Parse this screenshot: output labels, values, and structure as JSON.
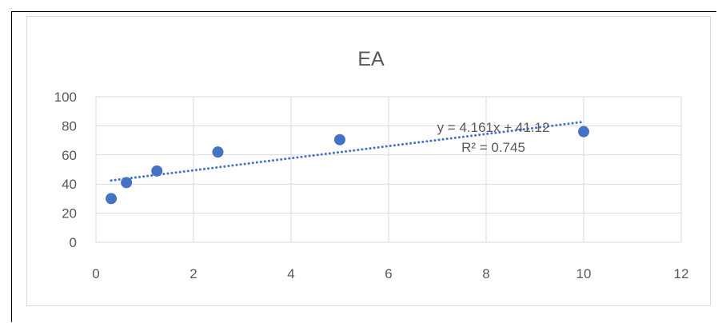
{
  "chart_data": {
    "type": "scatter",
    "title": "EA",
    "xlabel": "",
    "ylabel": "",
    "xlim": [
      0,
      12
    ],
    "ylim": [
      0,
      100
    ],
    "x_ticks": [
      0,
      2,
      4,
      6,
      8,
      10,
      12
    ],
    "y_ticks": [
      0,
      20,
      40,
      60,
      80,
      100
    ],
    "grid": true,
    "marker_color": "#4472c4",
    "trendline_color": "#4472c4",
    "series": [
      {
        "x": [
          0.3125,
          0.625,
          1.25,
          2.5,
          5,
          10
        ],
        "y": [
          30,
          41,
          49,
          62,
          70.5,
          76
        ]
      }
    ],
    "trendline": {
      "type": "linear",
      "slope": 4.161,
      "intercept": 41.12,
      "equation_label": "y = 4.161x + 41.12",
      "r2_label": "R² = 0.745"
    }
  }
}
